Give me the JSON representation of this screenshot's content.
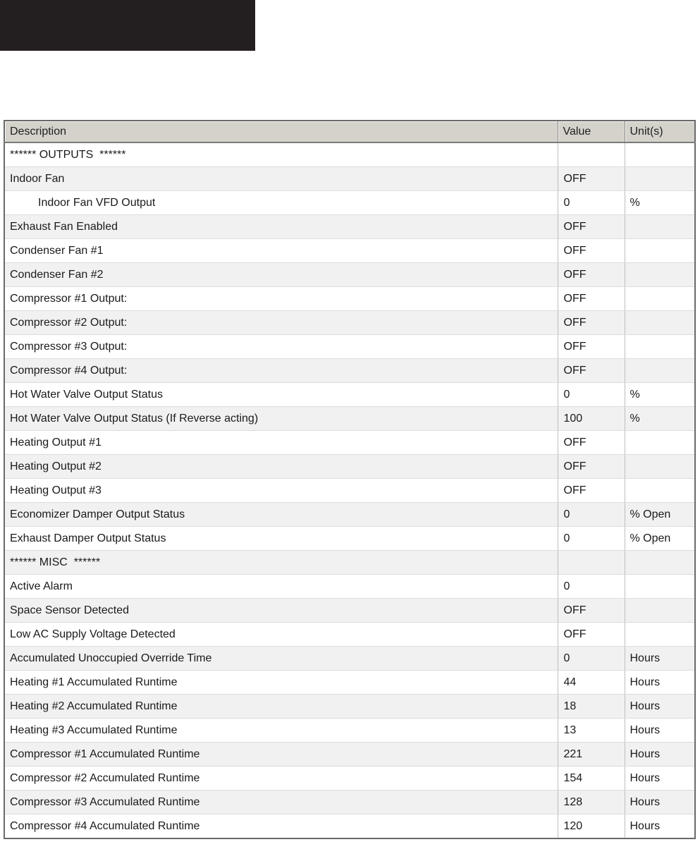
{
  "page": {
    "background": "#ffffff",
    "black_block_color": "#231f20"
  },
  "table": {
    "columns": [
      "Description",
      "Value",
      "Unit(s)"
    ],
    "colors": {
      "header_bg": "#d5d2cb",
      "header_text": "#1f1f1f",
      "header_border": "#7a7a7a",
      "header_divider": "#8a8a8a",
      "outer_border": "#6a6a6a",
      "alt_row_bg": "#f1f1f1",
      "row_divider": "#dcdcdc",
      "col_divider": "#bdbdbd",
      "body_text": "#1a1a1a"
    },
    "rows": [
      {
        "description": "****** OUTPUTS  ******",
        "value": "",
        "unit": "",
        "indent": false
      },
      {
        "description": "Indoor Fan",
        "value": "OFF",
        "unit": "",
        "indent": false
      },
      {
        "description": "Indoor Fan VFD Output",
        "value": "0",
        "unit": "%",
        "indent": true
      },
      {
        "description": "Exhaust Fan Enabled",
        "value": "OFF",
        "unit": "",
        "indent": false
      },
      {
        "description": "Condenser Fan #1",
        "value": "OFF",
        "unit": "",
        "indent": false
      },
      {
        "description": "Condenser Fan #2",
        "value": "OFF",
        "unit": "",
        "indent": false
      },
      {
        "description": "Compressor #1 Output:",
        "value": "OFF",
        "unit": "",
        "indent": false
      },
      {
        "description": "Compressor #2 Output:",
        "value": "OFF",
        "unit": "",
        "indent": false
      },
      {
        "description": "Compressor #3 Output:",
        "value": "OFF",
        "unit": "",
        "indent": false
      },
      {
        "description": "Compressor #4 Output:",
        "value": "OFF",
        "unit": "",
        "indent": false
      },
      {
        "description": "Hot Water Valve Output Status",
        "value": "0",
        "unit": "%",
        "indent": false
      },
      {
        "description": "Hot Water Valve Output Status (If Reverse acting)",
        "value": "100",
        "unit": "%",
        "indent": false
      },
      {
        "description": "Heating Output #1",
        "value": "OFF",
        "unit": "",
        "indent": false
      },
      {
        "description": "Heating Output #2",
        "value": "OFF",
        "unit": "",
        "indent": false
      },
      {
        "description": "Heating Output #3",
        "value": "OFF",
        "unit": "",
        "indent": false
      },
      {
        "description": "Economizer Damper Output Status",
        "value": "0",
        "unit": "% Open",
        "indent": false
      },
      {
        "description": "Exhaust Damper Output Status",
        "value": "0",
        "unit": "% Open",
        "indent": false
      },
      {
        "description": "****** MISC  ******",
        "value": "",
        "unit": "",
        "indent": false
      },
      {
        "description": "Active Alarm",
        "value": "0",
        "unit": "",
        "indent": false
      },
      {
        "description": "Space Sensor Detected",
        "value": "OFF",
        "unit": "",
        "indent": false
      },
      {
        "description": "Low AC Supply Voltage Detected",
        "value": "OFF",
        "unit": "",
        "indent": false
      },
      {
        "description": "Accumulated Unoccupied Override Time",
        "value": "0",
        "unit": "Hours",
        "indent": false
      },
      {
        "description": "Heating #1 Accumulated Runtime",
        "value": "44",
        "unit": "Hours",
        "indent": false
      },
      {
        "description": "Heating #2 Accumulated Runtime",
        "value": "18",
        "unit": "Hours",
        "indent": false
      },
      {
        "description": "Heating #3 Accumulated Runtime",
        "value": "13",
        "unit": "Hours",
        "indent": false
      },
      {
        "description": "Compressor #1 Accumulated Runtime",
        "value": "221",
        "unit": "Hours",
        "indent": false
      },
      {
        "description": "Compressor #2 Accumulated Runtime",
        "value": "154",
        "unit": "Hours",
        "indent": false
      },
      {
        "description": "Compressor #3 Accumulated Runtime",
        "value": "128",
        "unit": "Hours",
        "indent": false
      },
      {
        "description": "Compressor #4 Accumulated Runtime",
        "value": "120",
        "unit": "Hours",
        "indent": false
      }
    ]
  }
}
